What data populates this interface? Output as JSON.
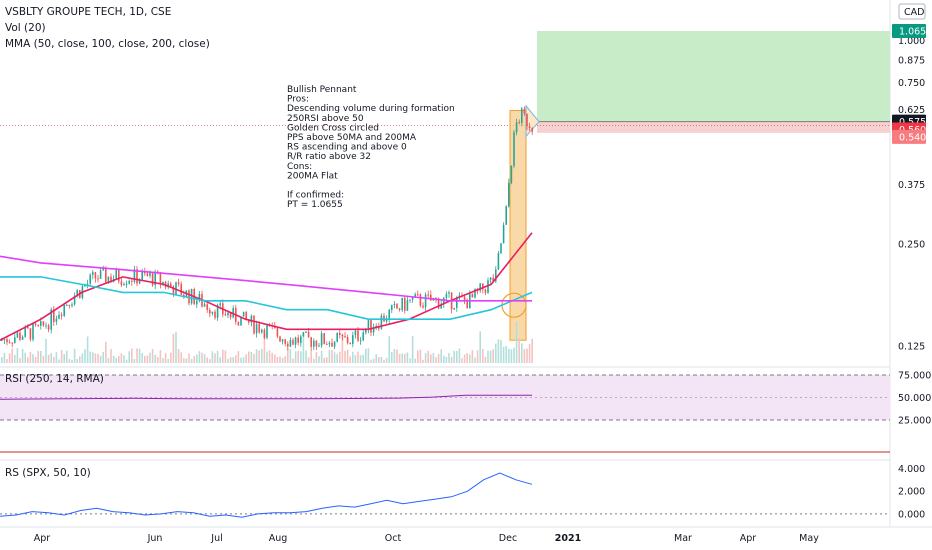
{
  "header": {
    "title": "VSBLTY GROUPE TECH, 1D, CSE",
    "volume_label": "Vol (20)",
    "mma_label": "MMA (50, close, 100, close, 200, close)",
    "currency": "CAD"
  },
  "annotation": {
    "lines": [
      "Bullish Pennant",
      "Pros:",
      "Descending volume during formation",
      "250RSI above 50",
      "Golden Cross circled",
      "PPS above 50MA and 200MA",
      "RS ascending and above 0",
      "R/R ratio above 32",
      "Cons:",
      "200MA Flat",
      "",
      "If confirmed:",
      "PT = 1.0655"
    ]
  },
  "price_tags": [
    {
      "label": "1.065",
      "color": "#089981"
    },
    {
      "label": "0.575",
      "color": "#131722"
    },
    {
      "label": "0.560",
      "color": "#f23645"
    },
    {
      "label": "0.540",
      "color": "#f77c80"
    }
  ],
  "panes": {
    "rsi_label": "RSI (250, 14, RMA)",
    "rs_label": "RS (SPX, 50, 10)"
  },
  "colors": {
    "ma50": "#e91e63",
    "ma100": "#26c6da",
    "ma200": "#e040fb",
    "up": "#26a69a",
    "down": "#ef5350",
    "target_zone": "#c8ecc8",
    "stop_zone": "#f7d0d0",
    "pennant": "#f7c57a",
    "rsi_band": "#f3e5f5",
    "rsi_line": "#8e24aa",
    "rs_line": "#2962ff"
  },
  "chart_data": [
    {
      "type": "candlestick",
      "title": "VSBLTY GROUPE TECH, 1D, CSE",
      "x_labels": [
        "Apr",
        "Jun",
        "Jul",
        "Aug",
        "Oct",
        "Dec",
        "2021",
        "Mar",
        "Apr",
        "May"
      ],
      "y_ticks": [
        "1.000",
        "0.875",
        "0.750",
        "0.625",
        "0.375",
        "0.250",
        "0.125"
      ],
      "y_scale": "log",
      "approx_close": {
        "Apr": 0.13,
        "May": 0.2,
        "Jun": 0.2,
        "Jul": 0.15,
        "Aug": 0.13,
        "Sep": 0.13,
        "Oct": 0.17,
        "Nov": 0.17,
        "Dec": 0.56
      },
      "long_position": {
        "entry": 0.575,
        "target": 1.065,
        "stop": 0.54
      },
      "series": [
        {
          "name": "MA 50",
          "values": [
            0.13,
            0.15,
            0.18,
            0.2,
            0.19,
            0.17,
            0.15,
            0.14,
            0.14,
            0.14,
            0.15,
            0.17,
            0.19,
            0.27
          ]
        },
        {
          "name": "MA 100",
          "values": [
            0.2,
            0.2,
            0.19,
            0.18,
            0.18,
            0.17,
            0.17,
            0.16,
            0.16,
            0.15,
            0.15,
            0.15,
            0.16,
            0.18
          ]
        },
        {
          "name": "MA 200",
          "values": [
            0.23,
            0.22,
            0.215,
            0.21,
            0.205,
            0.2,
            0.195,
            0.19,
            0.185,
            0.18,
            0.175,
            0.17,
            0.17,
            0.17
          ]
        }
      ]
    },
    {
      "type": "line",
      "title": "RSI (250, 14, RMA)",
      "y_ticks": [
        "75.000",
        "50.000",
        "25.000"
      ],
      "ylim": [
        10,
        80
      ],
      "series": [
        {
          "name": "RSI",
          "values": [
            48,
            48.3,
            48.6,
            48.9,
            49.1,
            48.8,
            48.6,
            48.7,
            48.6,
            48.7,
            48.8,
            49,
            49.3,
            50.5,
            52.5,
            52.6,
            52.5
          ]
        }
      ]
    },
    {
      "type": "line",
      "title": "RS (SPX, 50, 10)",
      "y_ticks": [
        "4.000",
        "2.000",
        "0.000"
      ],
      "ylim": [
        -0.8,
        4.3
      ],
      "series": [
        {
          "name": "RS",
          "values": [
            -0.2,
            -0.1,
            0.2,
            0.1,
            -0.1,
            0.3,
            0.5,
            0.2,
            0.1,
            -0.1,
            0.0,
            0.2,
            0.1,
            -0.2,
            -0.1,
            -0.3,
            0.0,
            0.1,
            0.1,
            0.2,
            0.5,
            0.7,
            0.6,
            0.9,
            1.2,
            0.9,
            1.1,
            1.3,
            1.5,
            2.0,
            3.0,
            3.6,
            3.0,
            2.6
          ]
        }
      ]
    }
  ]
}
